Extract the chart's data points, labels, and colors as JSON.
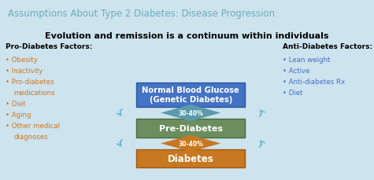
{
  "title": "Assumptions About Type 2 Diabetes: Disease Progression",
  "subtitle": "Evolution and remission is a continuum within individuals",
  "title_color": "#6aafb8",
  "subtitle_color": "#000000",
  "bg_color": "#cde3ee",
  "inner_bg_color": "#ffffff",
  "box1_label": "Normal Blood Glucose\n(Genetic Diabetes)",
  "box1_color": "#4472c4",
  "box1_edge": "#2a559e",
  "box2_label": "Pre-Diabetes",
  "box2_color": "#6b8e5e",
  "box2_edge": "#4a6a3e",
  "box3_label": "Diabetes",
  "box3_color": "#c87820",
  "box3_edge": "#a05810",
  "diamond_top_color": "#5b9aaa",
  "diamond_bottom_color": "#c87820",
  "pct_label": "30-40%",
  "arrow_color": "#6bbfcc",
  "pro_title": "Pro-Diabetes Factors:",
  "pro_items": [
    "Obesity",
    "Inactivity",
    "Pro-diabetes\nmedications",
    "Diet",
    "Aging",
    "Other medical\ndiagnoses"
  ],
  "pro_color": "#d07820",
  "anti_title": "Anti-Diabetes Factors:",
  "anti_items": [
    "Lean weight",
    "Active",
    "Anti-diabetes Rx",
    "Diet"
  ],
  "anti_color": "#4472c4"
}
